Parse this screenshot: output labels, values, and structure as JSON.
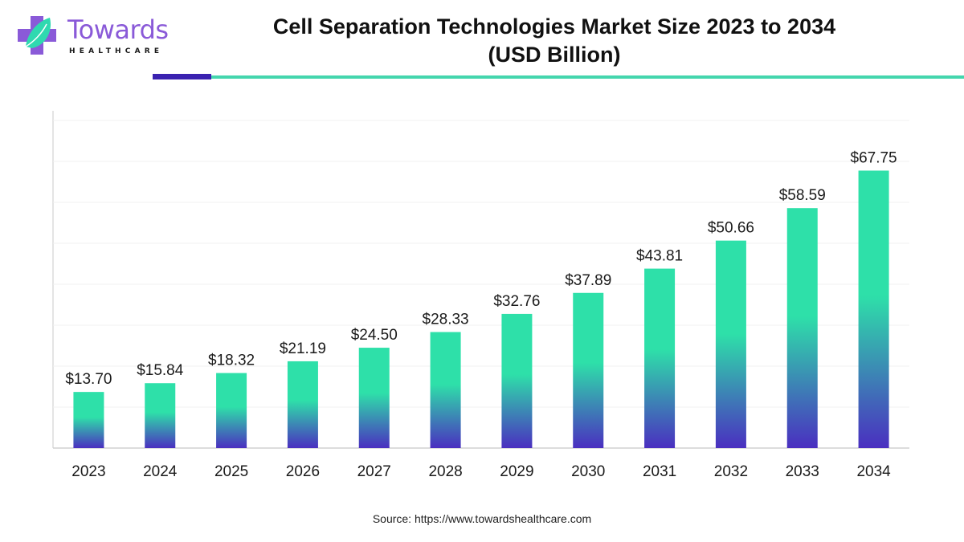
{
  "brand": {
    "name": "Towards",
    "subtitle": "HEALTHCARE",
    "colors": {
      "primary": "#8a5ad8",
      "accent": "#2fd9b0",
      "rule_dark": "#3a22b0",
      "rule_teal": "#44d6ad"
    }
  },
  "source": "Source: https://www.towardshealthcare.com",
  "chart_data": {
    "type": "bar",
    "title": "Cell Separation Technologies Market Size 2023 to 2034",
    "subtitle": "(USD Billion)",
    "xlabel": "",
    "ylabel": "",
    "categories": [
      "2023",
      "2024",
      "2025",
      "2026",
      "2027",
      "2028",
      "2029",
      "2030",
      "2031",
      "2032",
      "2033",
      "2034"
    ],
    "values": [
      13.7,
      15.84,
      18.32,
      21.19,
      24.5,
      28.33,
      32.76,
      37.89,
      43.81,
      50.66,
      58.59,
      67.75
    ],
    "data_labels": [
      "$13.70",
      "$15.84",
      "$18.32",
      "$21.19",
      "$24.50",
      "$28.33",
      "$32.76",
      "$37.89",
      "$43.81",
      "$50.66",
      "$58.59",
      "$67.75"
    ],
    "ylim": [
      0,
      80
    ],
    "ytick_step": 10,
    "grid": true,
    "y_tick_labels_visible": false,
    "legend": "none",
    "bar_gradient": {
      "top": "#2ee0a9",
      "bottom": "#4a2fc0"
    }
  }
}
